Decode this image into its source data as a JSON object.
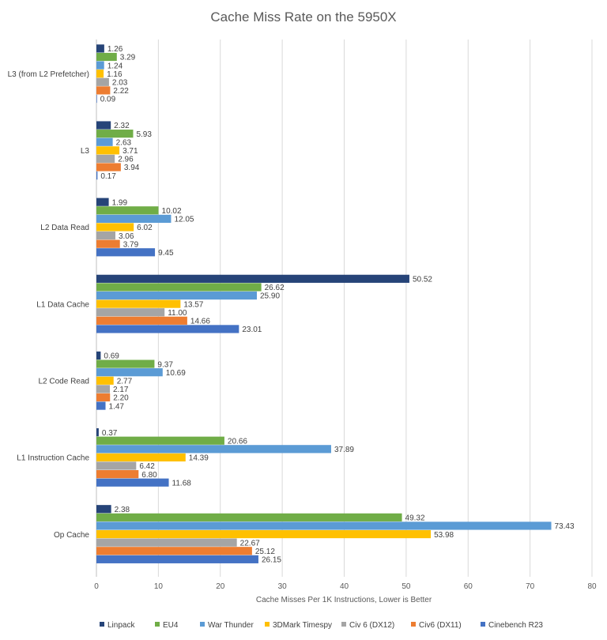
{
  "chart_data": {
    "type": "bar",
    "orientation": "horizontal",
    "title": "Cache Miss Rate on the 5950X",
    "xlabel": "Cache Misses Per 1K Instructions, Lower is Better",
    "ylabel": "",
    "xlim": [
      0,
      80
    ],
    "xticks": [
      0,
      10,
      20,
      30,
      40,
      50,
      60,
      70,
      80
    ],
    "grid": true,
    "legend_position": "bottom",
    "categories": [
      "L3 (from L2 Prefetcher)",
      "L3",
      "L2 Data Read",
      "L1 Data Cache",
      "L2 Code Read",
      "L1 Instruction Cache",
      "Op Cache"
    ],
    "value_labels": {
      "Linpack": [
        "1.26",
        "2.32",
        "1.99",
        "50.52",
        "0.69",
        "0.37",
        "2.38"
      ],
      "EU4": [
        "3.29",
        "5.93",
        "10.02",
        "26.62",
        "9.37",
        "20.66",
        "49.32"
      ],
      "War Thunder": [
        "1.24",
        "2.63",
        "12.05",
        "25.90",
        "10.69",
        "37.89",
        "73.43"
      ],
      "3DMark Timespy": [
        "1.16",
        "3.71",
        "6.02",
        "13.57",
        "2.77",
        "14.39",
        "53.98"
      ],
      "Civ 6 (DX12)": [
        "2.03",
        "2.96",
        "3.06",
        "11.00",
        "2.17",
        "6.42",
        "22.67"
      ],
      "Civ6 (DX11)": [
        "2.22",
        "3.94",
        "3.79",
        "14.66",
        "2.20",
        "6.80",
        "25.12"
      ],
      "Cinebench R23": [
        "0.09",
        "0.17",
        "9.45",
        "23.01",
        "1.47",
        "11.68",
        "26.15"
      ]
    },
    "series": [
      {
        "name": "Linpack",
        "color": "#264478",
        "values": [
          1.26,
          2.32,
          1.99,
          50.52,
          0.69,
          0.37,
          2.38
        ]
      },
      {
        "name": "EU4",
        "color": "#70AD47",
        "values": [
          3.29,
          5.93,
          10.02,
          26.62,
          9.37,
          20.66,
          49.32
        ]
      },
      {
        "name": "War Thunder",
        "color": "#5B9BD5",
        "values": [
          1.24,
          2.63,
          12.05,
          25.9,
          10.69,
          37.89,
          73.43
        ]
      },
      {
        "name": "3DMark Timespy",
        "color": "#FFC000",
        "values": [
          1.16,
          3.71,
          6.02,
          13.57,
          2.77,
          14.39,
          53.98
        ]
      },
      {
        "name": "Civ 6 (DX12)",
        "color": "#A5A5A5",
        "values": [
          2.03,
          2.96,
          3.06,
          11.0,
          2.17,
          6.42,
          22.67
        ]
      },
      {
        "name": "Civ6 (DX11)",
        "color": "#ED7D31",
        "values": [
          2.22,
          3.94,
          3.79,
          14.66,
          2.2,
          6.8,
          25.12
        ]
      },
      {
        "name": "Cinebench R23",
        "color": "#4472C4",
        "values": [
          0.09,
          0.17,
          9.45,
          23.01,
          1.47,
          11.68,
          26.15
        ]
      }
    ]
  }
}
